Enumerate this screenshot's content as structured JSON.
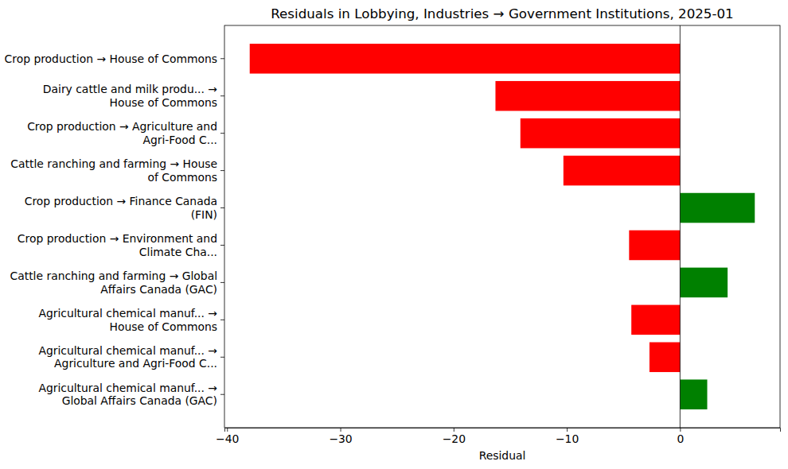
{
  "chart_data": {
    "type": "bar",
    "orientation": "horizontal",
    "title": "Residuals in Lobbying, Industries → Government Institutions, 2025-01",
    "x_label": "Residual",
    "categories": [
      "Crop production → House of Commons",
      "Dairy cattle and milk produ... →\nHouse of Commons",
      "Crop production → Agriculture and\nAgri-Food C...",
      "Cattle ranching and farming → House\nof Commons",
      "Crop production → Finance Canada\n(FIN)",
      "Crop production → Environment and\nClimate Cha...",
      "Cattle ranching and farming → Global\nAffairs Canada (GAC)",
      "Agricultural chemical manuf... →\nHouse of Commons",
      "Agricultural chemical manuf... →\nAgriculture and Agri-Food C...",
      "Agricultural chemical manuf... →\nGlobal Affairs Canada (GAC)"
    ],
    "values": [
      -38.0,
      -16.3,
      -14.1,
      -10.3,
      6.6,
      -4.5,
      4.2,
      -4.3,
      -2.7,
      2.4
    ],
    "colors": [
      "red",
      "red",
      "red",
      "red",
      "green",
      "red",
      "green",
      "red",
      "red",
      "green"
    ],
    "xlim": [
      -40.23,
      8.83
    ],
    "xticks": [
      {
        "value": -40,
        "label": "−40"
      },
      {
        "value": -30,
        "label": "−30"
      },
      {
        "value": -20,
        "label": "−20"
      },
      {
        "value": -10,
        "label": "−10"
      },
      0
    ],
    "grid": false
  }
}
